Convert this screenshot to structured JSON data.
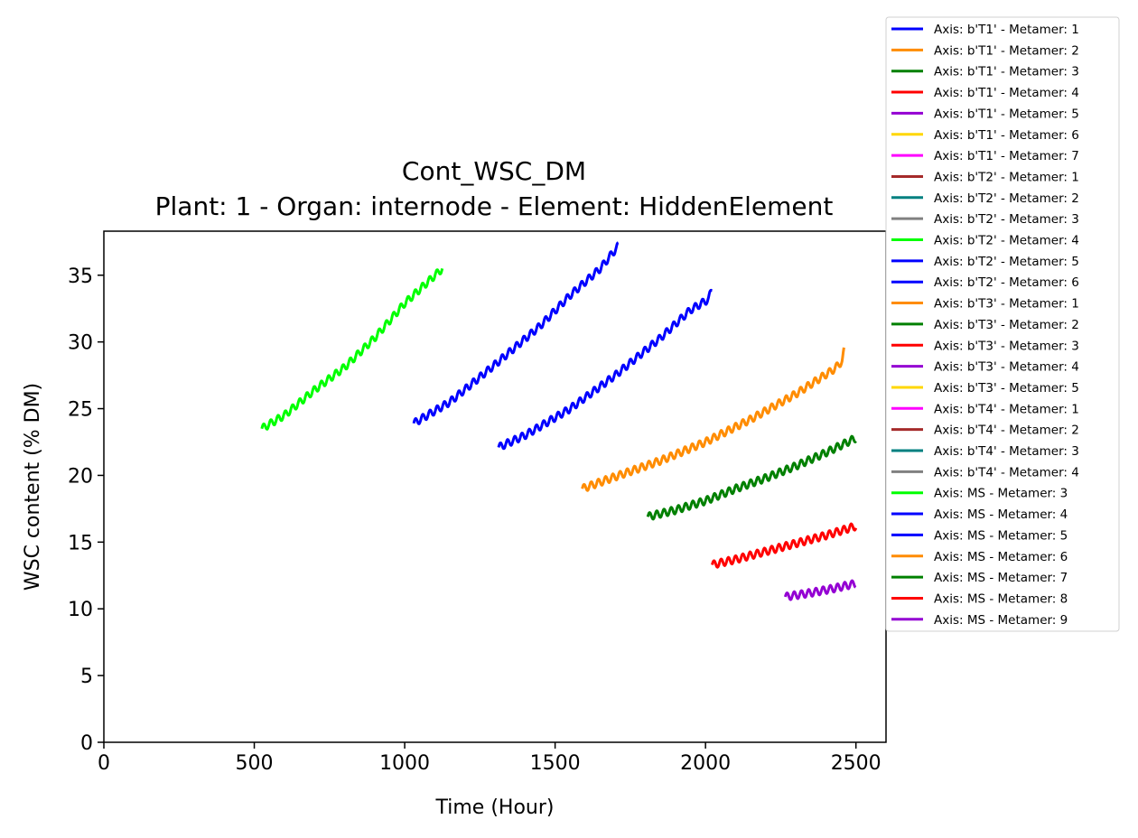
{
  "chart_data": {
    "type": "line",
    "title": "Cont_WSC_DM",
    "subtitle": "Plant: 1 - Organ: internode - Element: HiddenElement",
    "xlabel": "Time (Hour)",
    "ylabel": "WSC content (% DM)",
    "xlim": [
      0,
      2600
    ],
    "ylim": [
      0,
      38.3
    ],
    "xticks": [
      0,
      500,
      1000,
      1500,
      2000,
      2500
    ],
    "yticks": [
      0,
      5,
      10,
      15,
      20,
      25,
      30,
      35
    ],
    "grid": false,
    "legend_placement": "right, outside plot",
    "legend": [
      {
        "label": "Axis: b'T1' - Metamer: 1",
        "color": "#0000ff"
      },
      {
        "label": "Axis: b'T1' - Metamer: 2",
        "color": "#ff8c00"
      },
      {
        "label": "Axis: b'T1' - Metamer: 3",
        "color": "#008000"
      },
      {
        "label": "Axis: b'T1' - Metamer: 4",
        "color": "#ff0000"
      },
      {
        "label": "Axis: b'T1' - Metamer: 5",
        "color": "#9400d3"
      },
      {
        "label": "Axis: b'T1' - Metamer: 6",
        "color": "#ffd700"
      },
      {
        "label": "Axis: b'T1' - Metamer: 7",
        "color": "#ff00ff"
      },
      {
        "label": "Axis: b'T2' - Metamer: 1",
        "color": "#a52a2a"
      },
      {
        "label": "Axis: b'T2' - Metamer: 2",
        "color": "#008080"
      },
      {
        "label": "Axis: b'T2' - Metamer: 3",
        "color": "#808080"
      },
      {
        "label": "Axis: b'T2' - Metamer: 4",
        "color": "#00ff00"
      },
      {
        "label": "Axis: b'T2' - Metamer: 5",
        "color": "#0000ff"
      },
      {
        "label": "Axis: b'T2' - Metamer: 6",
        "color": "#0000ff"
      },
      {
        "label": "Axis: b'T3' - Metamer: 1",
        "color": "#ff8c00"
      },
      {
        "label": "Axis: b'T3' - Metamer: 2",
        "color": "#008000"
      },
      {
        "label": "Axis: b'T3' - Metamer: 3",
        "color": "#ff0000"
      },
      {
        "label": "Axis: b'T3' - Metamer: 4",
        "color": "#9400d3"
      },
      {
        "label": "Axis: b'T3' - Metamer: 5",
        "color": "#ffd700"
      },
      {
        "label": "Axis: b'T4' - Metamer: 1",
        "color": "#ff00ff"
      },
      {
        "label": "Axis: b'T4' - Metamer: 2",
        "color": "#a52a2a"
      },
      {
        "label": "Axis: b'T4' - Metamer: 3",
        "color": "#008080"
      },
      {
        "label": "Axis: b'T4' - Metamer: 4",
        "color": "#808080"
      },
      {
        "label": "Axis: MS - Metamer: 3",
        "color": "#00ff00"
      },
      {
        "label": "Axis: MS - Metamer: 4",
        "color": "#0000ff"
      },
      {
        "label": "Axis: MS - Metamer: 5",
        "color": "#0000ff"
      },
      {
        "label": "Axis: MS - Metamer: 6",
        "color": "#ff8c00"
      },
      {
        "label": "Axis: MS - Metamer: 7",
        "color": "#008000"
      },
      {
        "label": "Axis: MS - Metamer: 8",
        "color": "#ff0000"
      },
      {
        "label": "Axis: MS - Metamer: 9",
        "color": "#9400d3"
      }
    ],
    "series": [
      {
        "name": "Axis: MS - Metamer: 3",
        "color": "#00ff00",
        "x": [
          525,
          600,
          700,
          800,
          900,
          1000,
          1125
        ],
        "y": [
          23.5,
          24.5,
          26.4,
          28.1,
          30.3,
          32.9,
          35.5
        ]
      },
      {
        "name": "Axis: MS - Metamer: 4",
        "color": "#0000ff",
        "x": [
          1030,
          1150,
          1300,
          1450,
          1550,
          1650,
          1710
        ],
        "y": [
          23.9,
          25.5,
          28.3,
          31.2,
          33.5,
          35.5,
          37.2
        ]
      },
      {
        "name": "Axis: MS - Metamer: 5",
        "color": "#0000ff",
        "x": [
          1312,
          1400,
          1550,
          1700,
          1850,
          1950,
          2010,
          2022
        ],
        "y": [
          22.1,
          23.0,
          25.0,
          27.5,
          30.3,
          32.4,
          33.2,
          34.0
        ]
      },
      {
        "name": "Axis: MS - Metamer: 6",
        "color": "#ff8c00",
        "x": [
          1590,
          1700,
          1850,
          2000,
          2150,
          2300,
          2430,
          2455,
          2460
        ],
        "y": [
          19.0,
          19.9,
          21.1,
          22.5,
          24.2,
          26.1,
          28.0,
          28.6,
          29.3
        ]
      },
      {
        "name": "Axis: MS - Metamer: 7",
        "color": "#008000",
        "x": [
          1808,
          1900,
          2000,
          2100,
          2200,
          2300,
          2400,
          2500
        ],
        "y": [
          16.9,
          17.4,
          18.1,
          19.0,
          19.8,
          20.7,
          21.7,
          22.8
        ]
      },
      {
        "name": "Axis: MS - Metamer: 8",
        "color": "#ff0000",
        "x": [
          2022,
          2100,
          2200,
          2300,
          2400,
          2500
        ],
        "y": [
          13.3,
          13.7,
          14.3,
          14.9,
          15.5,
          16.2
        ]
      },
      {
        "name": "Axis: MS - Metamer: 9",
        "color": "#9400d3",
        "x": [
          2265,
          2350,
          2420,
          2500
        ],
        "y": [
          10.9,
          11.2,
          11.5,
          11.9
        ]
      }
    ]
  }
}
